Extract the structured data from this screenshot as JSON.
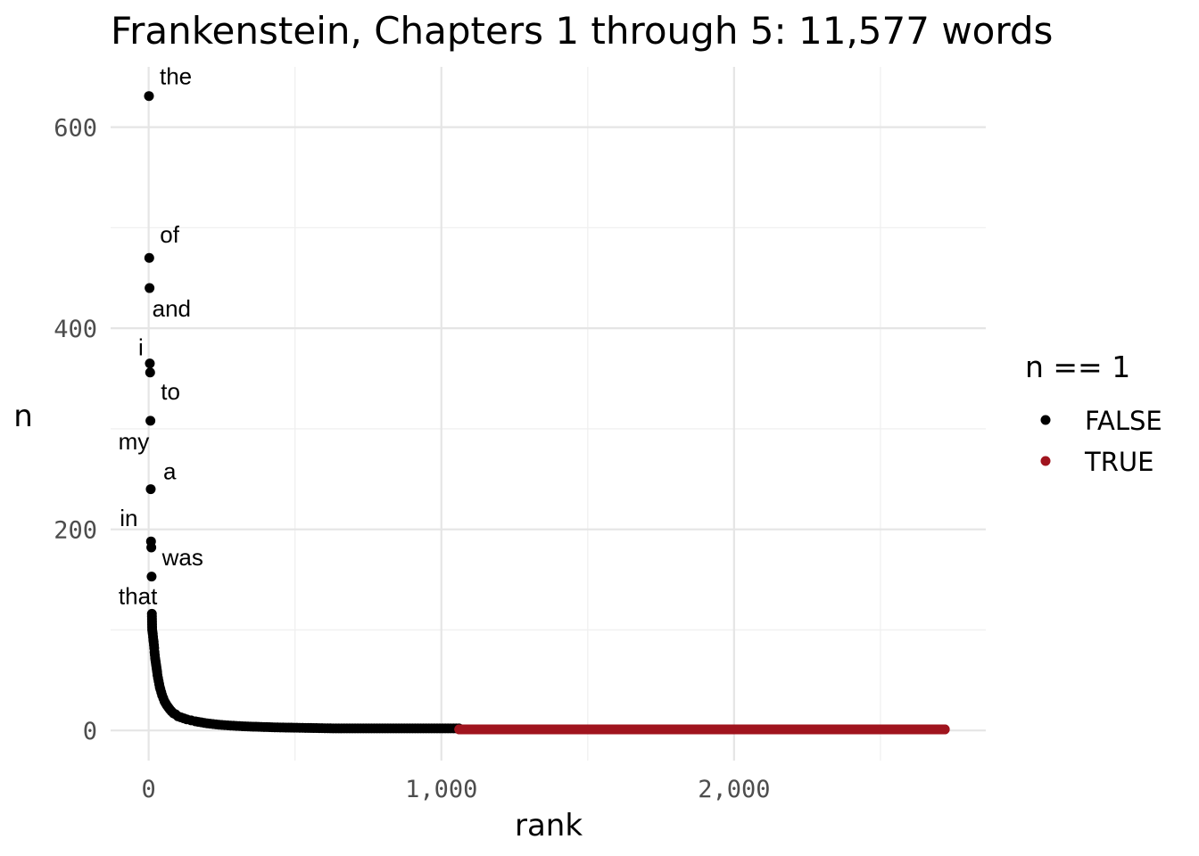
{
  "chart_data": {
    "type": "scatter",
    "title": "Frankenstein, Chapters 1 through 5: 11,577 words",
    "xlabel": "rank",
    "ylabel": "n",
    "xlim": [
      -130,
      2860
    ],
    "ylim": [
      -30,
      660
    ],
    "x_ticks": [
      0,
      1000,
      2000
    ],
    "x_tick_labels": [
      "0",
      "1,000",
      "2,000"
    ],
    "y_ticks": [
      0,
      200,
      400,
      600
    ],
    "y_tick_labels": [
      "0",
      "200",
      "400",
      "600"
    ],
    "grid": true,
    "legend": {
      "title": "n == 1",
      "position": "right",
      "entries": [
        {
          "label": "FALSE",
          "color": "#000000"
        },
        {
          "label": "TRUE",
          "color": "#a0141e"
        }
      ]
    },
    "labeled_points": [
      {
        "word": "the",
        "rank": 1,
        "n": 631
      },
      {
        "word": "of",
        "rank": 2,
        "n": 470
      },
      {
        "word": "and",
        "rank": 3,
        "n": 440
      },
      {
        "word": "i",
        "rank": 4,
        "n": 365
      },
      {
        "word": "to",
        "rank": 5,
        "n": 356
      },
      {
        "word": "my",
        "rank": 6,
        "n": 308
      },
      {
        "word": "a",
        "rank": 7,
        "n": 240
      },
      {
        "word": "in",
        "rank": 8,
        "n": 188
      },
      {
        "word": "was",
        "rank": 9,
        "n": 182
      },
      {
        "word": "that",
        "rank": 10,
        "n": 153
      }
    ],
    "series": [
      {
        "name": "FALSE",
        "color": "#000000",
        "points": [
          [
            11,
            116
          ],
          [
            12,
            100
          ],
          [
            13,
            98
          ],
          [
            14,
            96
          ],
          [
            15,
            93
          ],
          [
            16,
            90
          ],
          [
            17,
            88
          ],
          [
            18,
            85
          ],
          [
            19,
            82
          ],
          [
            20,
            78
          ],
          [
            21,
            75
          ],
          [
            22,
            72
          ],
          [
            23,
            70
          ],
          [
            24,
            68
          ],
          [
            25,
            66
          ],
          [
            26,
            64
          ],
          [
            27,
            62
          ],
          [
            28,
            60
          ],
          [
            29,
            58
          ],
          [
            30,
            55
          ],
          [
            32,
            52
          ],
          [
            34,
            49
          ],
          [
            36,
            46
          ],
          [
            38,
            43
          ],
          [
            40,
            41
          ],
          [
            43,
            38
          ],
          [
            46,
            35
          ],
          [
            50,
            32
          ],
          [
            54,
            29
          ],
          [
            58,
            27
          ],
          [
            62,
            25
          ],
          [
            67,
            23
          ],
          [
            72,
            21
          ],
          [
            78,
            19
          ],
          [
            85,
            17
          ],
          [
            92,
            16
          ],
          [
            100,
            14
          ],
          [
            110,
            13
          ],
          [
            120,
            12
          ],
          [
            130,
            11
          ],
          [
            145,
            10
          ],
          [
            160,
            9
          ],
          [
            180,
            8
          ],
          [
            200,
            7
          ],
          [
            230,
            6
          ],
          [
            270,
            5
          ],
          [
            330,
            4
          ],
          [
            440,
            3
          ],
          [
            640,
            2
          ],
          [
            1060,
            2
          ]
        ]
      },
      {
        "name": "TRUE",
        "color": "#a0141e",
        "points": [
          [
            1061,
            1
          ],
          [
            2720,
            1
          ]
        ]
      }
    ]
  }
}
